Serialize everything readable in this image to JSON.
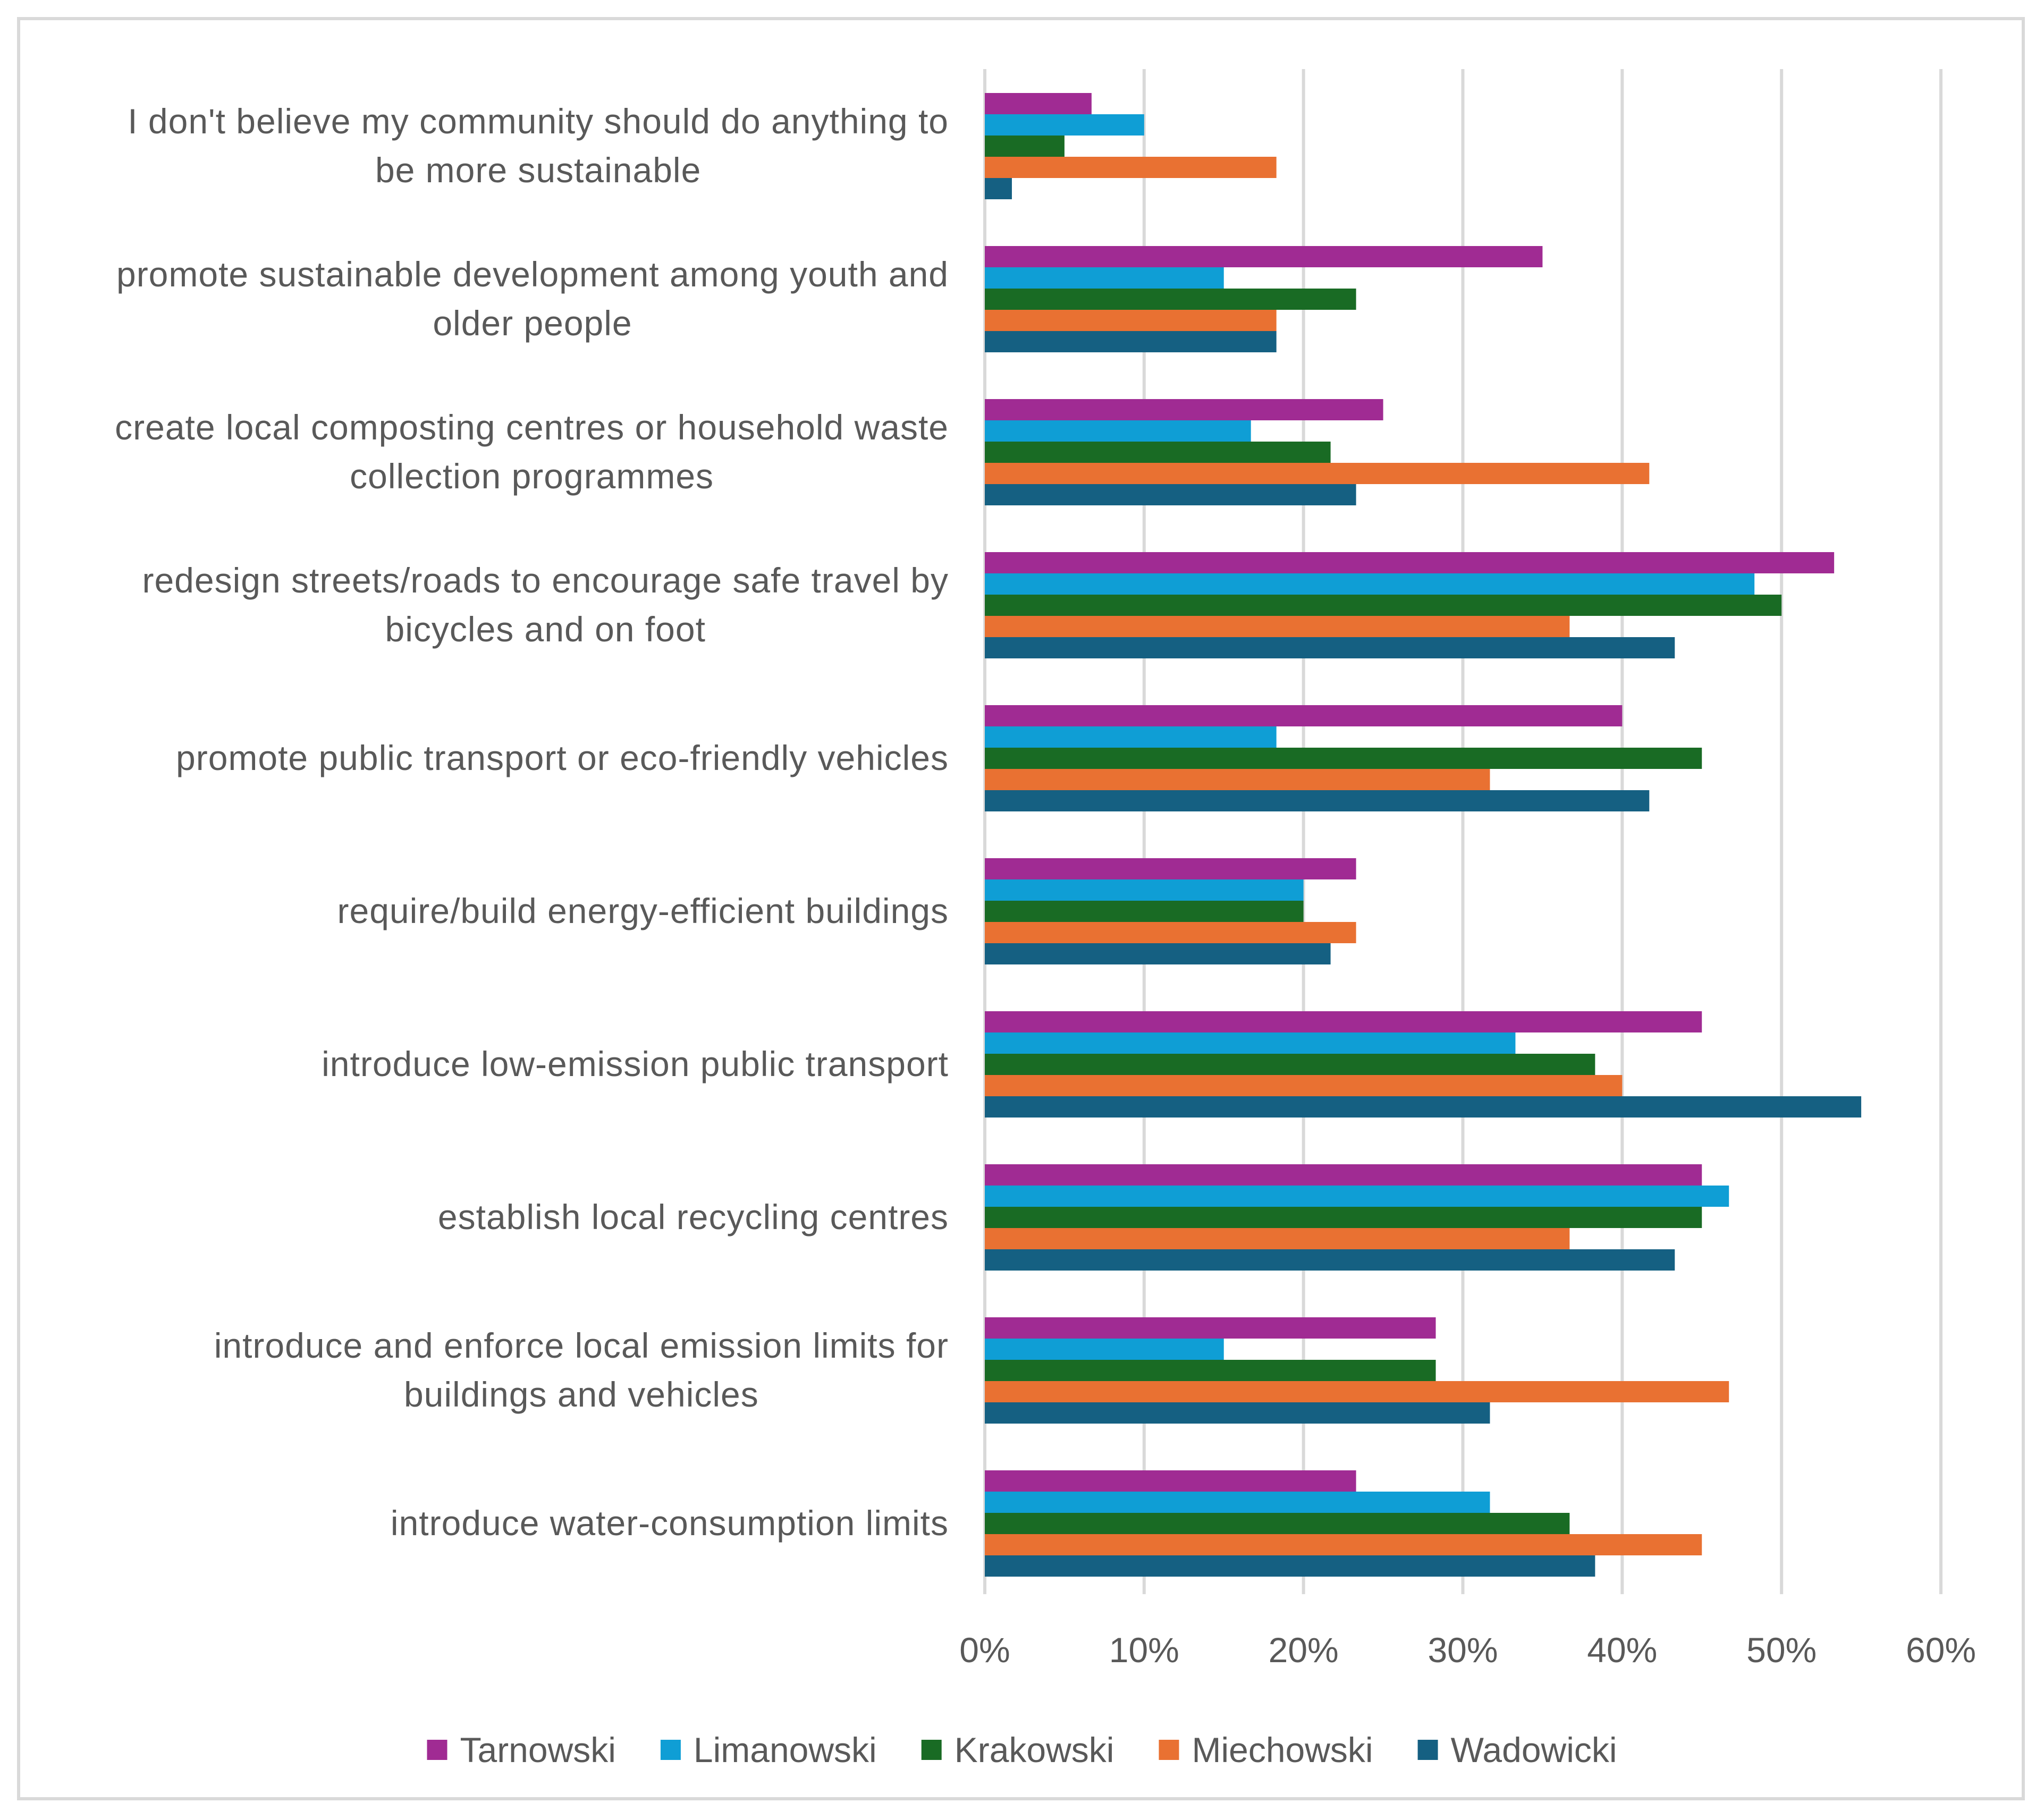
{
  "chart_data": {
    "type": "bar",
    "orientation": "horizontal",
    "title": "",
    "xlabel": "",
    "ylabel": "",
    "xlim": [
      0,
      60
    ],
    "x_ticks": [
      "0%",
      "10%",
      "20%",
      "30%",
      "40%",
      "50%",
      "60%"
    ],
    "grid": true,
    "legend_position": "bottom",
    "categories": [
      [
        "I don't believe my community should do anything to",
        "be more sustainable"
      ],
      [
        "promote sustainable development among youth and",
        "older people"
      ],
      [
        "create local composting centres or household waste",
        "collection programmes"
      ],
      [
        "redesign streets/roads to encourage safe travel by",
        "bicycles and on foot"
      ],
      [
        "promote public transport or eco-friendly vehicles"
      ],
      [
        "require/build energy-efficient buildings"
      ],
      [
        "introduce low-emission public transport"
      ],
      [
        "establish local recycling centres"
      ],
      [
        "introduce and enforce local emission limits for",
        "buildings and vehicles"
      ],
      [
        "introduce water-consumption limits"
      ]
    ],
    "series": [
      {
        "name": "Tarnowski",
        "color": "#a02b93",
        "values": [
          6.7,
          35.0,
          25.0,
          53.3,
          40.0,
          23.3,
          45.0,
          45.0,
          28.3,
          23.3
        ]
      },
      {
        "name": "Limanowski",
        "color": "#0f9ed5",
        "values": [
          10.0,
          15.0,
          16.7,
          48.3,
          18.3,
          20.0,
          33.3,
          46.7,
          15.0,
          31.7
        ]
      },
      {
        "name": "Krakowski",
        "color": "#196b24",
        "values": [
          5.0,
          23.3,
          21.7,
          50.0,
          45.0,
          20.0,
          38.3,
          45.0,
          28.3,
          36.7
        ]
      },
      {
        "name": "Miechowski",
        "color": "#e97132",
        "values": [
          18.3,
          18.3,
          41.7,
          36.7,
          31.7,
          23.3,
          40.0,
          36.7,
          46.7,
          45.0
        ]
      },
      {
        "name": "Wadowicki",
        "color": "#156082",
        "values": [
          1.7,
          18.3,
          23.3,
          43.3,
          41.7,
          21.7,
          55.0,
          43.3,
          31.7,
          38.3
        ]
      }
    ]
  }
}
